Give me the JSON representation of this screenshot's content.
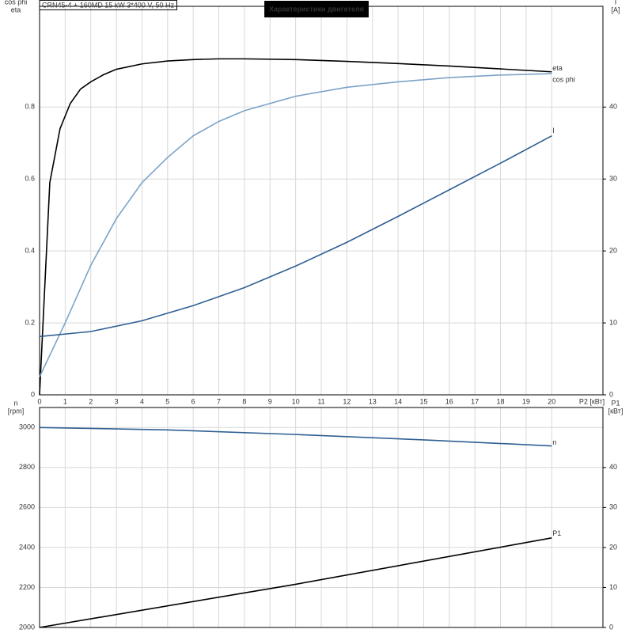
{
  "chart_data": [
    {
      "type": "line",
      "title": "Характеристики двигателя",
      "subtitle": "CRN45-4 + 160MD   15 kW   3*400 V, 50 Hz",
      "xlabel": "P2 [кВт]",
      "ylabel": [
        "cos phi",
        "eta"
      ],
      "y2label": [
        "I",
        "[A]"
      ],
      "xlim": [
        0,
        22
      ],
      "xticks": [
        0,
        1,
        2,
        3,
        4,
        5,
        6,
        7,
        8,
        9,
        10,
        11,
        12,
        13,
        14,
        15,
        16,
        17,
        18,
        19,
        20
      ],
      "ylim": [
        0,
        1.08
      ],
      "yticks": [
        0,
        0.2,
        0.4,
        0.6,
        0.8
      ],
      "y2lim": [
        0,
        54
      ],
      "y2ticks": [
        0,
        10,
        20,
        30,
        40
      ],
      "grid": true,
      "series": [
        {
          "name": "eta",
          "color": "#000000",
          "x": [
            0,
            0.4,
            0.8,
            1.2,
            1.6,
            2,
            2.5,
            3,
            4,
            5,
            6,
            7,
            8,
            10,
            12,
            14,
            16,
            18,
            20
          ],
          "values": [
            0,
            0.59,
            0.74,
            0.81,
            0.85,
            0.87,
            0.89,
            0.905,
            0.92,
            0.928,
            0.932,
            0.934,
            0.934,
            0.932,
            0.927,
            0.921,
            0.914,
            0.906,
            0.898
          ]
        },
        {
          "name": "cos phi",
          "color": "#7ba3c8",
          "x": [
            0,
            1,
            2,
            3,
            4,
            5,
            6,
            7,
            8,
            9,
            10,
            12,
            14,
            16,
            18,
            20
          ],
          "values": [
            0.05,
            0.2,
            0.36,
            0.49,
            0.59,
            0.66,
            0.72,
            0.76,
            0.79,
            0.81,
            0.83,
            0.855,
            0.87,
            0.882,
            0.889,
            0.893
          ]
        },
        {
          "name": "I",
          "color": "#2f5f93",
          "axis": "y2",
          "x": [
            0,
            2,
            4,
            6,
            8,
            10,
            12,
            14,
            16,
            18,
            20
          ],
          "values": [
            8.1,
            8.8,
            10.3,
            12.4,
            14.9,
            17.9,
            21.2,
            24.8,
            28.5,
            32.2,
            36.0
          ]
        }
      ]
    },
    {
      "type": "line",
      "ylabel": [
        "n",
        "[rpm]"
      ],
      "y2label": [
        "P1",
        "[кВт]"
      ],
      "xlim": [
        0,
        22
      ],
      "ylim": [
        2000,
        3100
      ],
      "yticks": [
        2000,
        2200,
        2400,
        2600,
        2800,
        3000
      ],
      "y2lim": [
        0,
        55
      ],
      "y2ticks": [
        0,
        10,
        20,
        30,
        40
      ],
      "grid": true,
      "series": [
        {
          "name": "n",
          "color": "#2f5f93",
          "x": [
            0,
            5,
            10,
            15,
            20
          ],
          "values": [
            3000,
            2988,
            2965,
            2938,
            2908
          ]
        },
        {
          "name": "P1",
          "color": "#000000",
          "axis": "y2",
          "x": [
            0,
            10,
            20
          ],
          "values": [
            0,
            10.8,
            22.4
          ]
        }
      ]
    }
  ]
}
